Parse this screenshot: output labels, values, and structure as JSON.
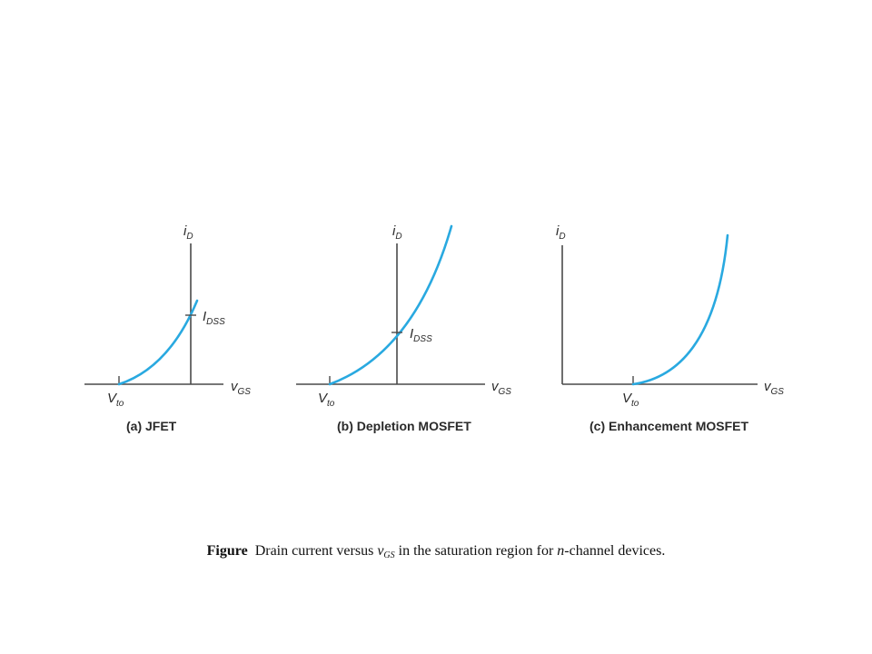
{
  "colors": {
    "curve": "#29a9e0",
    "axis": "#4a4a4a"
  },
  "panels": [
    {
      "caption": "(a) JFET",
      "y_axis_label": {
        "main": "i",
        "sub": "D"
      },
      "x_axis_label": {
        "main": "v",
        "sub": "GS"
      },
      "threshold_label": {
        "main": "V",
        "sub": "to"
      },
      "marker_label": {
        "main": "I",
        "sub": "DSS"
      }
    },
    {
      "caption": "(b) Depletion MOSFET",
      "y_axis_label": {
        "main": "i",
        "sub": "D"
      },
      "x_axis_label": {
        "main": "v",
        "sub": "GS"
      },
      "threshold_label": {
        "main": "V",
        "sub": "to"
      },
      "marker_label": {
        "main": "I",
        "sub": "DSS"
      }
    },
    {
      "caption": "(c) Enhancement MOSFET",
      "y_axis_label": {
        "main": "i",
        "sub": "D"
      },
      "x_axis_label": {
        "main": "v",
        "sub": "GS"
      },
      "threshold_label": {
        "main": "V",
        "sub": "to"
      }
    }
  ],
  "figure_caption": {
    "prefix": "Figure",
    "text_1": "Drain current versus ",
    "var_main": "v",
    "var_sub": "GS",
    "text_2": " in the saturation region for ",
    "italic_n": "n",
    "text_3": "-channel devices."
  }
}
